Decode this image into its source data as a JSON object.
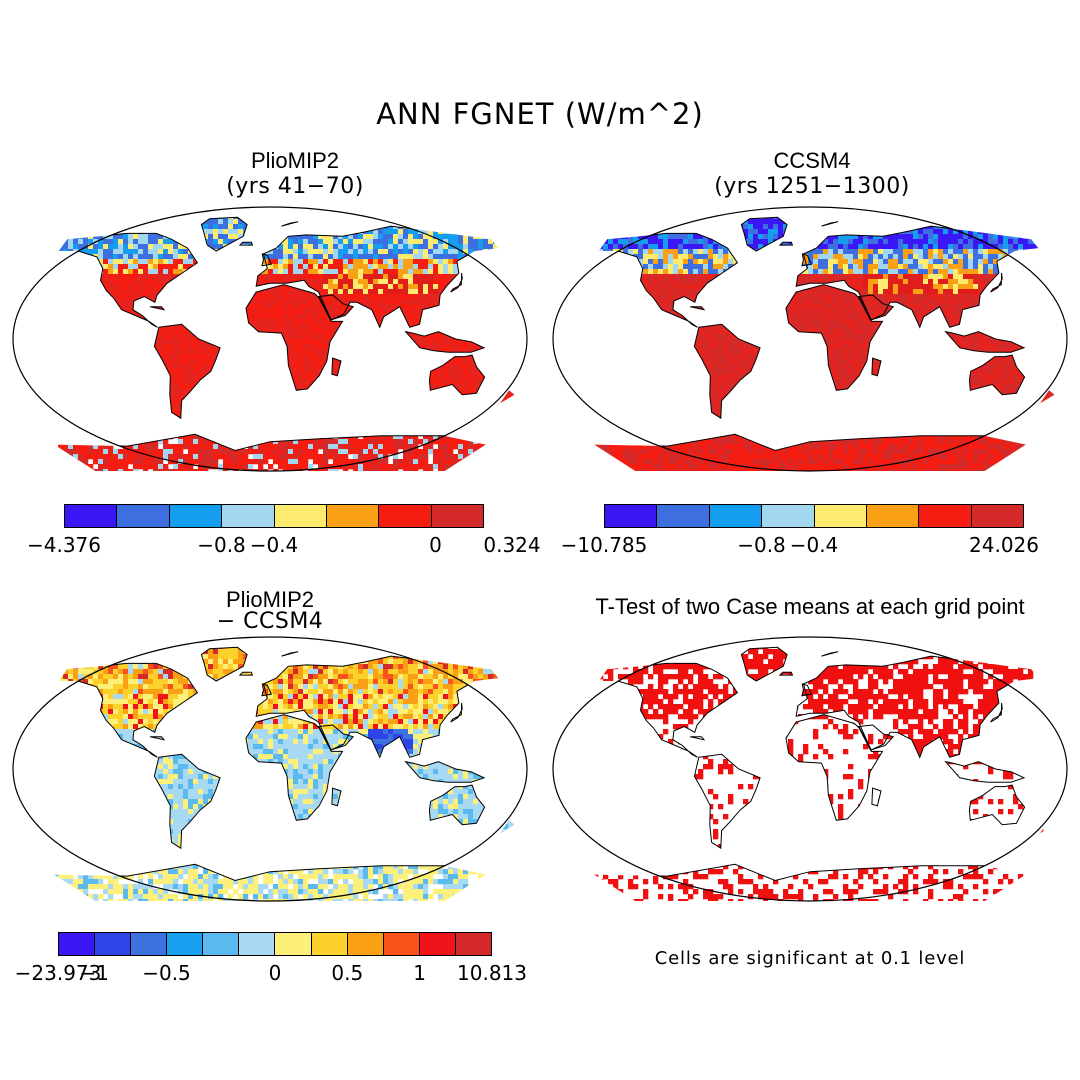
{
  "figure_title": "ANN FGNET (W/m^2)",
  "panels": {
    "top_left": {
      "title": "PlioMIP2",
      "subtitle": "(yrs 41−70)"
    },
    "top_right": {
      "title": "CCSM4",
      "subtitle": "(yrs 1251−1300)"
    },
    "bottom_left": {
      "title": "PlioMIP2",
      "subtitle": "− CCSM4"
    },
    "bottom_right": {
      "title": "T-Test of two Case means at each grid point",
      "note": "Cells are significant at 0.1 level"
    }
  },
  "colorbars": {
    "top_left": {
      "colors": [
        "#3b17f5",
        "#3d6fe0",
        "#159ef0",
        "#a3d7f0",
        "#fceb6e",
        "#f9a014",
        "#f51d12",
        "#d42a2a"
      ],
      "labels": [
        "−4.376",
        "−0.8",
        "−0.4",
        "0",
        "0.324"
      ]
    },
    "top_right": {
      "colors": [
        "#3b17f5",
        "#3d6fe0",
        "#159ef0",
        "#a3d7f0",
        "#fceb6e",
        "#f9a014",
        "#f51d12",
        "#d42a2a"
      ],
      "labels": [
        "−10.785",
        "−0.8",
        "−0.4",
        "24.026"
      ]
    },
    "bottom_left": {
      "colors": [
        "#3b17f5",
        "#2f44e6",
        "#3d72e0",
        "#1aa0f0",
        "#5ab9ee",
        "#a7d9f2",
        "#fcf07a",
        "#fcd12c",
        "#f9a014",
        "#f9521a",
        "#f0141a",
        "#d42a2a"
      ],
      "labels": [
        "−23.973",
        "−1",
        "−0.5",
        "0",
        "0.5",
        "1",
        "10.813"
      ]
    }
  },
  "map_colors": {
    "ocean": "#ffffff",
    "coast": "#000000",
    "significant": "#f01010"
  }
}
